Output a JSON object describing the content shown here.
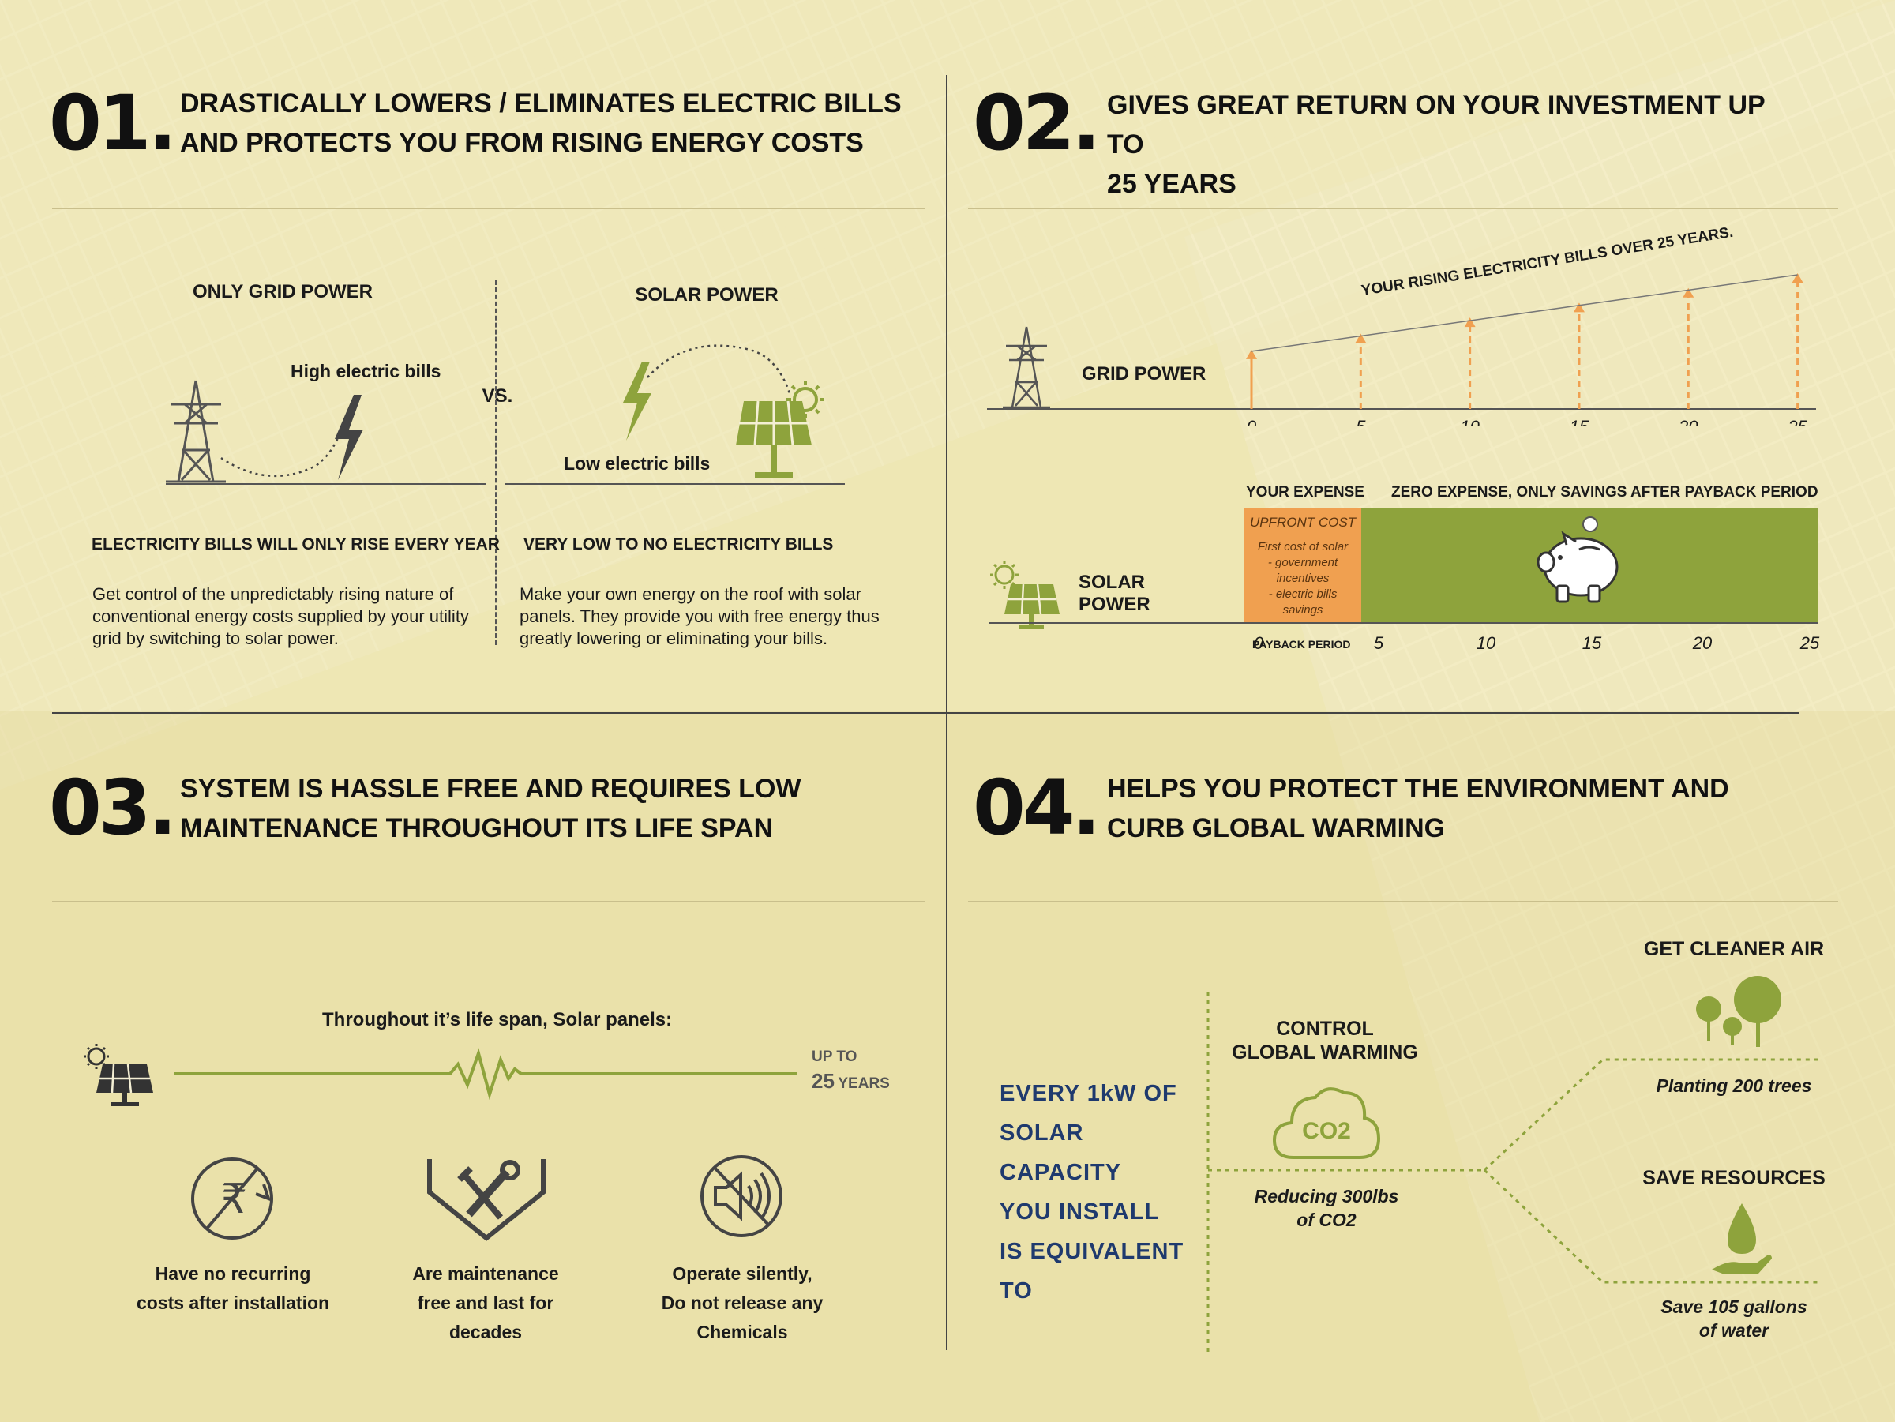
{
  "colors": {
    "accent_green": "#8ea33c",
    "accent_orange": "#f0a050",
    "navy": "#1f3a6e",
    "background": "#f1e9bd"
  },
  "s1": {
    "number": "01.",
    "title_line1": "DRASTICALLY LOWERS / ELIMINATES ELECTRIC BILLS",
    "title_line2": "AND PROTECTS YOU FROM RISING ENERGY COSTS",
    "grid_heading": "ONLY GRID POWER",
    "solar_heading": "SOLAR POWER",
    "vs": "VS.",
    "high_bills": "High electric bills",
    "low_bills": "Low electric bills",
    "grid_subheading": "ELECTRICITY BILLS WILL ONLY RISE EVERY YEAR",
    "solar_subheading": "VERY LOW TO NO ELECTRICITY BILLS",
    "grid_text": "Get control of the unpredictably rising nature of conventional energy costs supplied by your utility grid by switching to solar power.",
    "solar_text": "Make your own energy on the roof with solar panels. They provide you with free energy thus greatly lowering or eliminating your bills."
  },
  "s2": {
    "number": "02.",
    "title_line1": "GIVES GREAT RETURN ON YOUR INVESTMENT UP TO",
    "title_line2": "25 YEARS",
    "grid_label": "GRID POWER",
    "rising_label": "YOUR RISING ELECTRICITY BILLS OVER 25 YEARS.",
    "solar_label": "SOLAR POWER",
    "your_expense": "YOUR EXPENSE",
    "zero_expense": "ZERO EXPENSE, ONLY SAVINGS AFTER PAYBACK PERIOD",
    "upfront_title": "UPFRONT COST",
    "upfront_lines": [
      "First cost of solar",
      "- government",
      "incentives",
      "- electric bills",
      "savings"
    ],
    "payback_label": "PAYBACK PERIOD",
    "ticks": [
      "0",
      "5",
      "10",
      "15",
      "20",
      "25"
    ],
    "bill_levels_relative": [
      0.43,
      0.55,
      0.67,
      0.78,
      0.89,
      1.0
    ]
  },
  "s3": {
    "number": "03.",
    "title_line1": "SYSTEM IS HASSLE FREE AND REQUIRES LOW",
    "title_line2": "MAINTENANCE THROUGHOUT ITS LIFE SPAN",
    "lifespan_text": "Throughout it’s life span, Solar panels:",
    "upto": "UP TO",
    "years_num": "25",
    "years_word": "YEARS",
    "items": [
      {
        "line1": "Have no recurring",
        "line2": "costs after installation",
        "line3": ""
      },
      {
        "line1": "Are maintenance",
        "line2": "free and last for",
        "line3": "decades"
      },
      {
        "line1": "Operate silently,",
        "line2": "Do not release any",
        "line3": "Chemicals"
      }
    ]
  },
  "s4": {
    "number": "04.",
    "title_line1": "HELPS YOU PROTECT THE ENVIRONMENT AND",
    "title_line2": "CURB GLOBAL WARMING",
    "every_lines": [
      "EVERY 1kW OF",
      "SOLAR CAPACITY",
      "YOU INSTALL",
      "IS EQUIVALENT",
      "TO"
    ],
    "control_line1": "CONTROL",
    "control_line2": "GLOBAL WARMING",
    "co2_icon_text": "CO2",
    "reducing_line1": "Reducing 300lbs",
    "reducing_line2": "of CO2",
    "cleaner_air": "GET CLEANER AIR",
    "planting": "Planting 200 trees",
    "save_resources": "SAVE RESOURCES",
    "save_water_line1": "Save 105 gallons",
    "save_water_line2": "of water"
  }
}
